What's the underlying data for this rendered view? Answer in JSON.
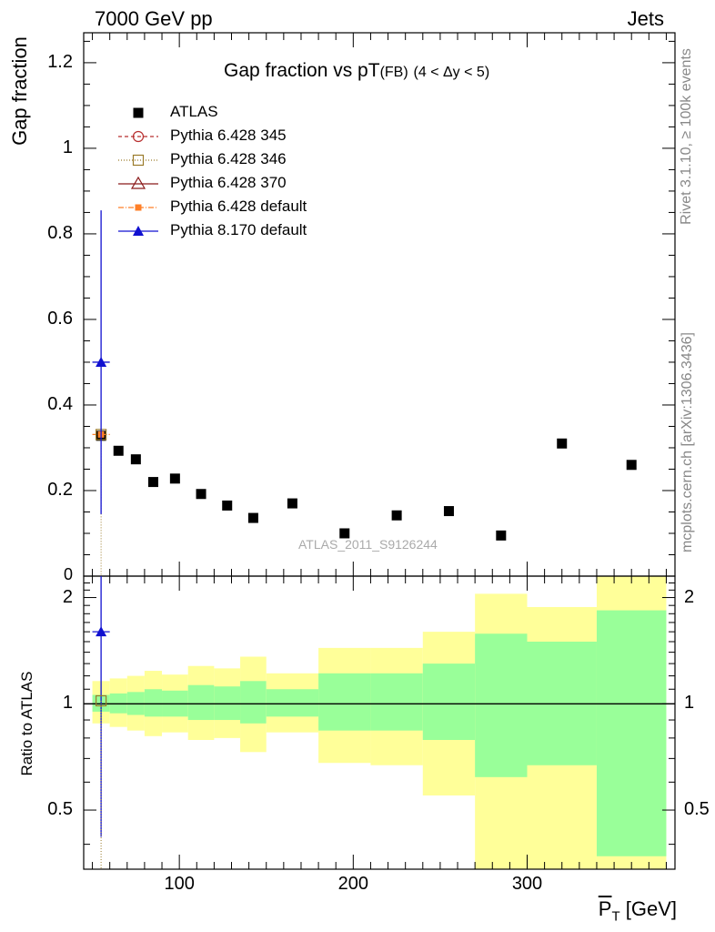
{
  "header": {
    "energy": "7000 GeV pp",
    "process": "Jets",
    "rivet": "Rivet 3.1.10, ≥ 100k events",
    "mcplots": "mcplots.cern.ch [arXiv:1306.3436]",
    "analysis": "ATLAS_2011_S9126244"
  },
  "colors": {
    "atlas": "#000000",
    "py345": "#b82f2f",
    "py346": "#9a7a2a",
    "py370": "#8b1a1a",
    "py6def": "#ff7f27",
    "py8def": "#1010d0",
    "band_outer": "#ffff99",
    "band_inner": "#99ff99"
  },
  "chart_data": [
    {
      "type": "scatter",
      "title": "Gap fraction vs pT",
      "title_sub": "(FB)",
      "title_range": "(4 < Δy < 5)",
      "ylabel": "Gap fraction",
      "ylim": [
        0,
        1.27
      ],
      "xlim": [
        45,
        385
      ],
      "yticks": [
        0.2,
        0.4,
        0.6,
        0.8,
        1,
        1.2
      ],
      "ytick_labels": [
        "0.2",
        "0.4",
        "0.6",
        "0.8",
        "1",
        "1.2"
      ],
      "y_zero_label": "0",
      "legend": [
        {
          "key": "atlas",
          "label": "ATLAS",
          "marker": "square-filled"
        },
        {
          "key": "py345",
          "label": "Pythia 6.428 345",
          "marker": "circle-open"
        },
        {
          "key": "py346",
          "label": "Pythia 6.428 346",
          "marker": "square-open"
        },
        {
          "key": "py370",
          "label": "Pythia 6.428 370",
          "marker": "triangle-open"
        },
        {
          "key": "py6def",
          "label": "Pythia 6.428 default",
          "marker": "square-small"
        },
        {
          "key": "py8def",
          "label": "Pythia 8.170 default",
          "marker": "triangle-filled"
        }
      ],
      "atlas": {
        "x": [
          55,
          65,
          75,
          85,
          97.5,
          112.5,
          127.5,
          142.5,
          165,
          195,
          225,
          255,
          285,
          320,
          360
        ],
        "y": [
          0.328,
          0.293,
          0.273,
          0.22,
          0.228,
          0.192,
          0.165,
          0.136,
          0.17,
          0.1,
          0.142,
          0.152,
          0.095,
          0.31,
          0.26
        ]
      },
      "mc_first_bin": {
        "x": 55,
        "xerr": 5,
        "py8_y": 0.5,
        "py8_err": 0.355,
        "py6_y": 0.331
      }
    },
    {
      "type": "area",
      "ylabel": "Ratio to ATLAS",
      "xlabel": "P_T [GeV]",
      "xlabel_main": "P",
      "xlabel_sub": "T",
      "xlabel_unit": "[GeV]",
      "xlim": [
        45,
        385
      ],
      "ylim": [
        0.34,
        2.3
      ],
      "xticks": [
        100,
        200,
        300
      ],
      "xtick_labels": [
        "100",
        "200",
        "300"
      ],
      "yticks": [
        0.5,
        1,
        2
      ],
      "ytick_labels": [
        "0.5",
        "1",
        "2"
      ],
      "bands": [
        {
          "x0": 50,
          "x1": 60,
          "outer": [
            0.88,
            1.16
          ],
          "inner": [
            0.95,
            1.06
          ]
        },
        {
          "x0": 60,
          "x1": 70,
          "outer": [
            0.86,
            1.18
          ],
          "inner": [
            0.94,
            1.07
          ]
        },
        {
          "x0": 70,
          "x1": 80,
          "outer": [
            0.84,
            1.2
          ],
          "inner": [
            0.93,
            1.08
          ]
        },
        {
          "x0": 80,
          "x1": 90,
          "outer": [
            0.81,
            1.24
          ],
          "inner": [
            0.92,
            1.1
          ]
        },
        {
          "x0": 90,
          "x1": 105,
          "outer": [
            0.83,
            1.21
          ],
          "inner": [
            0.92,
            1.09
          ]
        },
        {
          "x0": 105,
          "x1": 120,
          "outer": [
            0.79,
            1.28
          ],
          "inner": [
            0.9,
            1.13
          ]
        },
        {
          "x0": 120,
          "x1": 135,
          "outer": [
            0.8,
            1.26
          ],
          "inner": [
            0.9,
            1.12
          ]
        },
        {
          "x0": 135,
          "x1": 150,
          "outer": [
            0.73,
            1.36
          ],
          "inner": [
            0.88,
            1.16
          ]
        },
        {
          "x0": 150,
          "x1": 180,
          "outer": [
            0.83,
            1.22
          ],
          "inner": [
            0.92,
            1.1
          ]
        },
        {
          "x0": 180,
          "x1": 210,
          "outer": [
            0.68,
            1.44
          ],
          "inner": [
            0.84,
            1.22
          ]
        },
        {
          "x0": 210,
          "x1": 240,
          "outer": [
            0.67,
            1.44
          ],
          "inner": [
            0.84,
            1.22
          ]
        },
        {
          "x0": 240,
          "x1": 270,
          "outer": [
            0.55,
            1.6
          ],
          "inner": [
            0.79,
            1.3
          ]
        },
        {
          "x0": 270,
          "x1": 300,
          "outer": [
            0.34,
            2.05
          ],
          "inner": [
            0.62,
            1.58
          ]
        },
        {
          "x0": 300,
          "x1": 340,
          "outer": [
            0.34,
            1.88
          ],
          "inner": [
            0.67,
            1.5
          ]
        },
        {
          "x0": 340,
          "x1": 380,
          "outer": [
            0.34,
            2.3
          ],
          "inner": [
            0.37,
            1.84
          ]
        }
      ],
      "py8_ratio": {
        "x": 55,
        "y": 1.6,
        "xerr": 5,
        "lo": 0.42,
        "hi": 2.3
      },
      "py6_ratio": {
        "x": 55,
        "y": 1.02
      }
    }
  ]
}
